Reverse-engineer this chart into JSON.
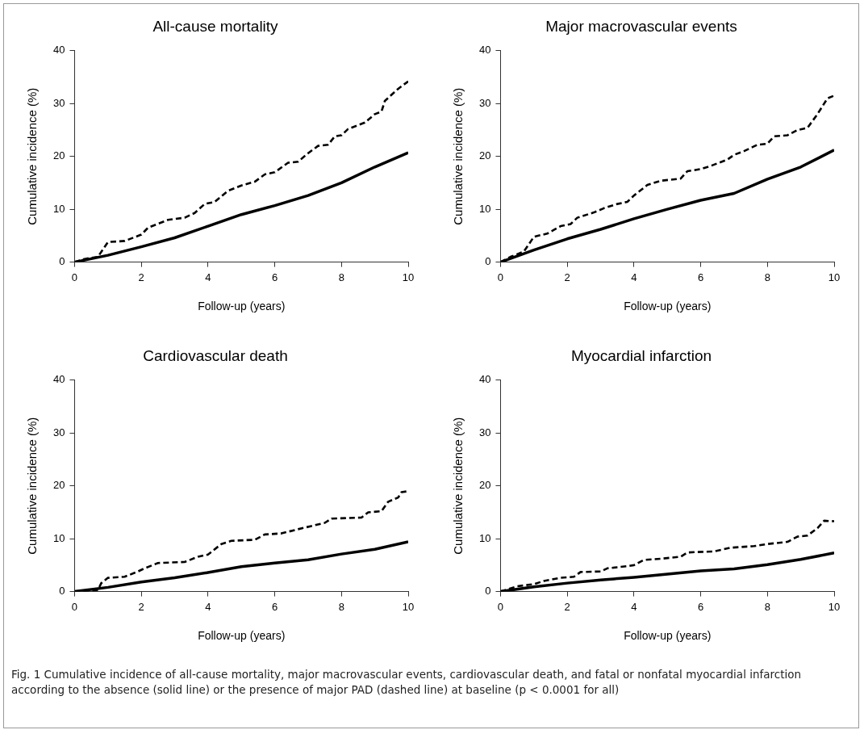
{
  "chart_data": [
    {
      "type": "line",
      "title": "All-cause mortality",
      "xlabel": "Follow-up (years)",
      "ylabel": "Cumulative incidence (%)",
      "xlim": [
        0,
        10
      ],
      "xticks": [
        0,
        2,
        4,
        6,
        8,
        10
      ],
      "ylim": [
        0,
        40
      ],
      "yticks": [
        0,
        10,
        20,
        30,
        40
      ],
      "grid": false,
      "legend": false,
      "marker": "none",
      "series": [
        {
          "color": "#000000",
          "line_style": "solid",
          "x": [
            0,
            1,
            2,
            3,
            4,
            5,
            6,
            7,
            8,
            9,
            10
          ],
          "values": [
            0,
            1.3,
            2.9,
            4.6,
            6.8,
            9.0,
            10.7,
            12.6,
            15.0,
            18.0,
            20.7
          ]
        },
        {
          "color": "#000000",
          "line_style": "dashed",
          "x": [
            0,
            0.3,
            0.7,
            1.0,
            1.5,
            2.0,
            2.2,
            2.8,
            3.3,
            3.6,
            3.9,
            4.2,
            4.6,
            5.0,
            5.4,
            5.7,
            6.0,
            6.4,
            6.7,
            7.0,
            7.3,
            7.6,
            7.8,
            8.0,
            8.2,
            8.7,
            9.0,
            9.2,
            9.3,
            9.7,
            10.0
          ],
          "values": [
            0,
            0.6,
            1.0,
            3.8,
            4.0,
            5.2,
            6.5,
            8.0,
            8.4,
            9.3,
            11.0,
            11.4,
            13.5,
            14.5,
            15.2,
            16.6,
            17.0,
            18.8,
            19.0,
            20.6,
            22.0,
            22.2,
            23.8,
            24.0,
            25.2,
            26.4,
            28.0,
            28.5,
            30.5,
            32.8,
            34.2
          ]
        }
      ]
    },
    {
      "type": "line",
      "title": "Major macrovascular events",
      "xlabel": "Follow-up (years)",
      "ylabel": "Cumulative incidence (%)",
      "xlim": [
        0,
        10
      ],
      "xticks": [
        0,
        2,
        4,
        6,
        8,
        10
      ],
      "ylim": [
        0,
        40
      ],
      "yticks": [
        0,
        10,
        20,
        30,
        40
      ],
      "grid": false,
      "legend": false,
      "marker": "none",
      "series": [
        {
          "color": "#000000",
          "line_style": "solid",
          "x": [
            0,
            1,
            2,
            3,
            4,
            5,
            6,
            7,
            8,
            9,
            10
          ],
          "values": [
            0,
            2.3,
            4.4,
            6.2,
            8.2,
            10.0,
            11.7,
            13.0,
            15.7,
            18.0,
            21.2
          ]
        },
        {
          "color": "#000000",
          "line_style": "dashed",
          "x": [
            0,
            0.3,
            0.7,
            1.0,
            1.4,
            1.8,
            2.1,
            2.3,
            2.8,
            3.1,
            3.5,
            3.8,
            4.0,
            4.4,
            4.8,
            5.4,
            5.6,
            6.0,
            6.3,
            6.8,
            7.0,
            7.3,
            7.7,
            8.0,
            8.2,
            8.6,
            8.9,
            9.2,
            9.5,
            9.8,
            10.0
          ],
          "values": [
            0,
            1.0,
            2.0,
            4.8,
            5.4,
            6.8,
            7.2,
            8.4,
            9.4,
            10.2,
            11.0,
            11.4,
            12.6,
            14.6,
            15.4,
            15.8,
            17.2,
            17.6,
            18.2,
            19.4,
            20.3,
            21.0,
            22.2,
            22.4,
            23.8,
            24.0,
            25.0,
            25.4,
            28.0,
            31.0,
            31.5
          ]
        }
      ]
    },
    {
      "type": "line",
      "title": "Cardiovascular death",
      "xlabel": "Follow-up (years)",
      "ylabel": "Cumulative incidence (%)",
      "xlim": [
        0,
        10
      ],
      "xticks": [
        0,
        2,
        4,
        6,
        8,
        10
      ],
      "ylim": [
        0,
        40
      ],
      "yticks": [
        0,
        10,
        20,
        30,
        40
      ],
      "grid": false,
      "legend": false,
      "marker": "none",
      "series": [
        {
          "color": "#000000",
          "line_style": "solid",
          "x": [
            0,
            1,
            2,
            3,
            4,
            5,
            6,
            7,
            8,
            9,
            10
          ],
          "values": [
            0,
            0.8,
            1.8,
            2.6,
            3.6,
            4.7,
            5.4,
            6.0,
            7.1,
            8.0,
            9.4
          ]
        },
        {
          "color": "#000000",
          "line_style": "dashed",
          "x": [
            0,
            0.7,
            0.8,
            1.0,
            1.5,
            1.9,
            2.1,
            2.5,
            3.3,
            3.7,
            4.0,
            4.4,
            4.7,
            5.4,
            5.7,
            6.2,
            6.7,
            7.1,
            7.5,
            7.7,
            8.6,
            8.8,
            9.2,
            9.4,
            9.7,
            9.8,
            10.0
          ],
          "values": [
            0,
            0.3,
            1.6,
            2.6,
            2.8,
            3.8,
            4.4,
            5.4,
            5.6,
            6.6,
            7.0,
            9.0,
            9.6,
            9.8,
            10.8,
            11.0,
            11.8,
            12.4,
            13.0,
            13.8,
            14.0,
            15.0,
            15.2,
            17.0,
            17.8,
            18.8,
            19.0
          ]
        }
      ]
    },
    {
      "type": "line",
      "title": "Myocardial infarction",
      "xlabel": "Follow-up (years)",
      "ylabel": "Cumulative incidence (%)",
      "xlim": [
        0,
        10
      ],
      "xticks": [
        0,
        2,
        4,
        6,
        8,
        10
      ],
      "ylim": [
        0,
        40
      ],
      "yticks": [
        0,
        10,
        20,
        30,
        40
      ],
      "grid": false,
      "legend": false,
      "marker": "none",
      "annotations": [
        "Fig. 1  Cumulative incidence of all-cause mortality, major macrovascular events, cardiovascular death, and fatal or nonfatal myocardial infarction according to the absence (solid line) or the presence of major PAD (dashed line) at baseline (p < 0.0001 for all)"
      ],
      "series": [
        {
          "color": "#000000",
          "line_style": "solid",
          "x": [
            0,
            1,
            2,
            3,
            4,
            5,
            6,
            7,
            8,
            9,
            10
          ],
          "values": [
            0,
            0.9,
            1.6,
            2.2,
            2.7,
            3.3,
            3.9,
            4.3,
            5.1,
            6.1,
            7.3
          ]
        },
        {
          "color": "#000000",
          "line_style": "dashed",
          "x": [
            0,
            0.5,
            1.0,
            1.3,
            1.8,
            2.2,
            2.4,
            3.0,
            3.2,
            3.8,
            4.0,
            4.3,
            4.8,
            5.4,
            5.6,
            6.4,
            6.9,
            7.6,
            8.0,
            8.6,
            8.9,
            9.2,
            9.5,
            9.7,
            10.0
          ],
          "values": [
            0,
            1.0,
            1.4,
            2.0,
            2.6,
            2.8,
            3.7,
            3.8,
            4.4,
            4.8,
            5.0,
            6.0,
            6.2,
            6.6,
            7.4,
            7.6,
            8.3,
            8.6,
            9.0,
            9.4,
            10.4,
            10.6,
            12.0,
            13.4,
            13.3
          ]
        }
      ]
    }
  ]
}
